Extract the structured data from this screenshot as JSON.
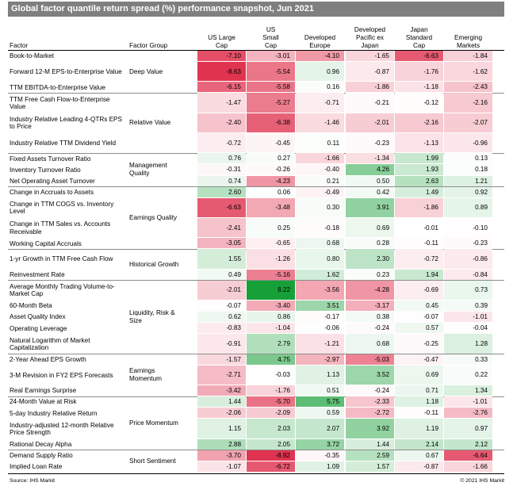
{
  "title": "Global factor quantile return spread (%) performance snapshot, Jun 2021",
  "footer": {
    "source": "Source: IHS Markit",
    "copyright": "© 2021 IHS Markit"
  },
  "colors": {
    "title_bg": "#7f7f7f",
    "negative": "#e0334f",
    "positive": "#18a038",
    "neutral": "#ffffff"
  },
  "chart_data": {
    "type": "table",
    "title": "Global factor quantile return spread (%) performance snapshot, Jun 2021",
    "row_header": "Factor",
    "group_header": "Factor Group",
    "columns": [
      "US Large\nCap",
      "US\nSmall\nCap",
      "Developed\nEurope",
      "Developed\nPacific ex\nJapan",
      "Japan\nStandard\nCap",
      "Emerging\nMarkets"
    ],
    "groups": [
      {
        "name": "Deep Value",
        "rows": [
          {
            "factor": "Book-to-Market",
            "values": [
              "-7.10",
              "-3.01",
              "-4.10",
              "-1.65",
              "-6.63",
              "-1.84"
            ]
          },
          {
            "factor": "Forward 12-M EPS-to-Enterprise Value",
            "values": [
              "-8.63",
              "-5.54",
              "0.96",
              "-0.87",
              "-1.76",
              "-1.62"
            ]
          },
          {
            "factor": "TTM EBITDA-to-Enterprise Value",
            "values": [
              "-6.15",
              "-5.58",
              "0.16",
              "-1.86",
              "-1.18",
              "-2.43"
            ]
          }
        ]
      },
      {
        "name": "Relative Value",
        "rows": [
          {
            "factor": "TTM Free Cash Flow-to-Enterprise Value",
            "values": [
              "-1.47",
              "-5.27",
              "-0.71",
              "-0.21",
              "-0.12",
              "-2.16"
            ]
          },
          {
            "factor": "Industry Relative Leading 4-QTRs EPS to Price",
            "values": [
              "-2.40",
              "-6.38",
              "-1.46",
              "-2.01",
              "-2.16",
              "-2.07"
            ]
          },
          {
            "factor": "Industry Relative TTM Dividend Yield",
            "values": [
              "-0.72",
              "-0.45",
              "0.11",
              "-0.23",
              "-1.13",
              "-0.96"
            ]
          }
        ]
      },
      {
        "name": "Management\nQuality",
        "rows": [
          {
            "factor": "Fixed Assets Turnover Ratio",
            "values": [
              "0.76",
              "0.27",
              "-1.66",
              "-1.34",
              "1.99",
              "0.13"
            ]
          },
          {
            "factor": "Inventory Turnover Ratio",
            "values": [
              "-0.31",
              "-0.26",
              "-0.40",
              "4.26",
              "1.93",
              "0.18"
            ]
          },
          {
            "factor": "Net Operating Asset Turnover",
            "values": [
              "0.74",
              "-4.23",
              "0.21",
              "0.50",
              "2.63",
              "1.21"
            ]
          }
        ]
      },
      {
        "name": "Earnings Quality",
        "rows": [
          {
            "factor": "Change in Accruals to Assets",
            "values": [
              "2.60",
              "0.06",
              "-0.49",
              "0.42",
              "1.49",
              "0.92"
            ]
          },
          {
            "factor": "Change in TTM COGS vs. Inventory Level",
            "values": [
              "-6.63",
              "-3.48",
              "0.30",
              "3.91",
              "-1.86",
              "0.89"
            ]
          },
          {
            "factor": "Change in TTM Sales vs. Accounts Receivable",
            "values": [
              "-2.41",
              "0.25",
              "-0.18",
              "0.69",
              "-0.01",
              "-0.10"
            ]
          },
          {
            "factor": "Working Capital Accruals",
            "values": [
              "-3.05",
              "-0.65",
              "0.68",
              "0.28",
              "-0.11",
              "-0.23"
            ]
          }
        ]
      },
      {
        "name": "Historical Growth",
        "rows": [
          {
            "factor": "1-yr Growth in TTM Free Cash Flow",
            "values": [
              "1.55",
              "-1.26",
              "0.80",
              "2.30",
              "-0.72",
              "-0.86"
            ]
          },
          {
            "factor": "Reinvestment Rate",
            "values": [
              "0.49",
              "-5.16",
              "1.62",
              "0.23",
              "1.94",
              "-0.84"
            ]
          }
        ]
      },
      {
        "name": "Liquidity, Risk &\nSize",
        "rows": [
          {
            "factor": "Average Monthly Trading Volume-to-Market Cap",
            "values": [
              "-2.01",
              "8.22",
              "-3.56",
              "-4.28",
              "-0.69",
              "0.73"
            ]
          },
          {
            "factor": "60-Month Beta",
            "values": [
              "-0.07",
              "-3.40",
              "3.51",
              "-3.17",
              "0.45",
              "0.39"
            ]
          },
          {
            "factor": "Asset Quality Index",
            "values": [
              "0.62",
              "0.86",
              "-0.17",
              "0.38",
              "-0.07",
              "-1.01"
            ]
          },
          {
            "factor": "Operating Leverage",
            "values": [
              "-0.83",
              "-1.04",
              "-0.06",
              "-0.24",
              "0.57",
              "-0.04"
            ]
          },
          {
            "factor": "Natural Logarithm of Market Capitalization",
            "values": [
              "-0.91",
              "2.79",
              "-1.21",
              "0.68",
              "-0.25",
              "1.28"
            ]
          }
        ]
      },
      {
        "name": "Earnings\nMomentum",
        "rows": [
          {
            "factor": "2-Year Ahead EPS Growth",
            "values": [
              "-1.57",
              "4.75",
              "-2.97",
              "-5.03",
              "-0.47",
              "0.33"
            ]
          },
          {
            "factor": "3-M Revision in FY2 EPS Forecasts",
            "values": [
              "-2.71",
              "-0.03",
              "1.13",
              "3.52",
              "0.69",
              "0.22"
            ]
          },
          {
            "factor": "Real Earnings Surprise",
            "values": [
              "-3.42",
              "-1.76",
              "0.51",
              "-0.24",
              "0.71",
              "1.34"
            ]
          }
        ]
      },
      {
        "name": "Price Momentum",
        "rows": [
          {
            "factor": "24-Month Value at Risk",
            "values": [
              "1.44",
              "-5.70",
              "5.75",
              "-2.33",
              "1.18",
              "-1.01"
            ]
          },
          {
            "factor": "5-day Industry Relative Return",
            "values": [
              "-2.06",
              "-2.09",
              "0.59",
              "-2.72",
              "-0.11",
              "-2.76"
            ]
          },
          {
            "factor": "Industry-adjusted 12-month Relative Price Strength",
            "values": [
              "1.15",
              "2.03",
              "2.07",
              "3.92",
              "1.19",
              "0.97"
            ]
          },
          {
            "factor": "Rational Decay Alpha",
            "values": [
              "2.88",
              "2.05",
              "3.72",
              "1.44",
              "2.14",
              "2.12"
            ]
          }
        ]
      },
      {
        "name": "Short Sentiment",
        "rows": [
          {
            "factor": "Demand Supply Ratio",
            "values": [
              "-3.70",
              "-8.92",
              "-0.35",
              "2.59",
              "0.67",
              "-6.64"
            ]
          },
          {
            "factor": "Implied Loan Rate",
            "values": [
              "-1.07",
              "-6.72",
              "1.09",
              "1.57",
              "-0.87",
              "-1.66"
            ]
          }
        ]
      }
    ]
  }
}
